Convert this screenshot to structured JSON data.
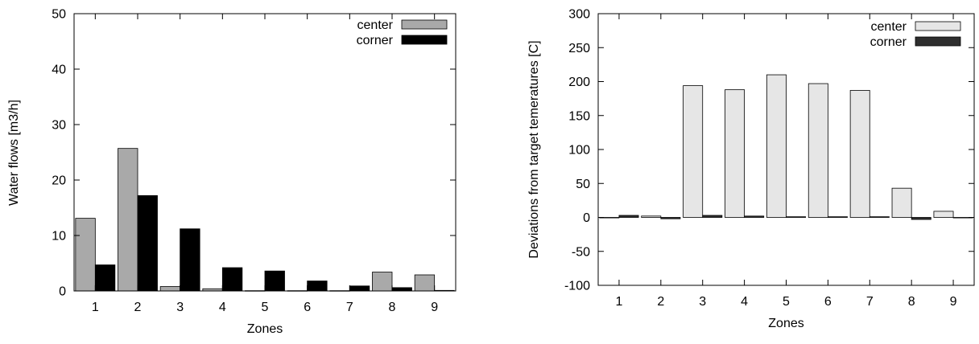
{
  "chart_data": [
    {
      "type": "bar",
      "title": "",
      "xlabel": "Zones",
      "ylabel": "Water flows [m3/h]",
      "categories": [
        "1",
        "2",
        "3",
        "4",
        "5",
        "6",
        "7",
        "8",
        "9"
      ],
      "ylim": [
        0,
        50
      ],
      "yticks": [
        "0",
        "10",
        "20",
        "30",
        "40",
        "50"
      ],
      "legend_position": "top-right",
      "series": [
        {
          "name": "center",
          "color": "#a9a9a9",
          "values": [
            13.1,
            25.7,
            0.8,
            0.4,
            0.05,
            0.05,
            0.05,
            3.4,
            2.9
          ]
        },
        {
          "name": "corner",
          "color": "#000000",
          "values": [
            4.7,
            17.2,
            11.2,
            4.2,
            3.6,
            1.8,
            0.9,
            0.6,
            0.1
          ]
        }
      ]
    },
    {
      "type": "bar",
      "title": "",
      "xlabel": "Zones",
      "ylabel": "Deviations from target temeratures [C]",
      "categories": [
        "1",
        "2",
        "3",
        "4",
        "5",
        "6",
        "7",
        "8",
        "9"
      ],
      "ylim": [
        -100,
        300
      ],
      "yticks": [
        "-100",
        "-50",
        "0",
        "50",
        "100",
        "150",
        "200",
        "250",
        "300"
      ],
      "legend_position": "top-right",
      "series": [
        {
          "name": "center",
          "color": "#e6e6e6",
          "values": [
            0,
            2,
            194,
            188,
            210,
            197,
            187,
            43,
            9
          ]
        },
        {
          "name": "corner",
          "color": "#2e2e2e",
          "values": [
            3,
            -2,
            3,
            2,
            1,
            1,
            1,
            -3,
            0
          ]
        }
      ]
    }
  ]
}
